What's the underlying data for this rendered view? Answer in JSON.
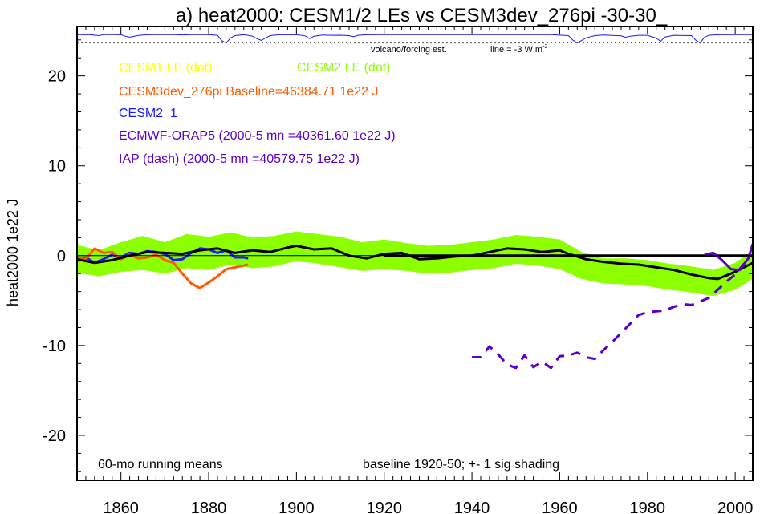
{
  "chart_data": {
    "type": "line",
    "title": "a) heat2000: CESM1/2 LEs vs CESM3dev_276pi -30-30_",
    "ylabel": "heat2000 1e22 J",
    "xlabel": "",
    "xlim": [
      1850,
      2004
    ],
    "ylim": [
      -25,
      25.5
    ],
    "x_ticks": [
      1860,
      1880,
      1900,
      1920,
      1940,
      1960,
      1980,
      2000
    ],
    "y_ticks": [
      -20,
      -10,
      0,
      10,
      20
    ],
    "annotations": {
      "bottom_left": "60-mo running means",
      "bottom_right": "baseline 1920-50; +- 1 sig shading",
      "volcano_label": "volcano/forcing est.",
      "volcano_line_label": "line = -3 W m",
      "volcano_line_sup": "-2"
    },
    "legend": [
      {
        "label": "CESM1 LE (dot)",
        "color": "#ffff00"
      },
      {
        "label": "CESM2 LE (dot)",
        "color": "#8cff00"
      },
      {
        "label": "CESM3dev_276pi Baseline=46384.71 1e22 J",
        "color": "#ff5a00"
      },
      {
        "label": "CESM2_1",
        "color": "#1a1aff"
      },
      {
        "label": "ECMWF-ORAP5 (2000-5 mn =40361.60 1e22 J)",
        "color": "#5a00c8"
      },
      {
        "label": "IAP (dash) (2000-5 mn =40579.75 1e22 J)",
        "color": "#5a00c8"
      }
    ],
    "band": {
      "name": "CESM2 LE",
      "color": "#8cff00",
      "x": [
        1850,
        1855,
        1860,
        1865,
        1870,
        1875,
        1880,
        1885,
        1890,
        1895,
        1900,
        1905,
        1910,
        1915,
        1920,
        1925,
        1930,
        1935,
        1940,
        1945,
        1950,
        1955,
        1960,
        1965,
        1970,
        1975,
        1980,
        1985,
        1990,
        1995,
        2000,
        2004
      ],
      "upper": [
        1.2,
        0.6,
        1.5,
        2.2,
        1.5,
        2.4,
        2.1,
        2.6,
        2.0,
        2.2,
        2.7,
        2.4,
        2.1,
        1.5,
        1.8,
        1.4,
        1.1,
        1.2,
        1.5,
        1.8,
        2.3,
        2.1,
        1.8,
        0.4,
        -0.3,
        -0.3,
        -0.5,
        -0.9,
        -1.2,
        -1.6,
        -0.8,
        0.6
      ],
      "lower": [
        -1.9,
        -2.3,
        -1.8,
        -1.6,
        -2.0,
        -1.4,
        -1.6,
        -1.0,
        -1.4,
        -1.2,
        -0.6,
        -0.9,
        -1.3,
        -1.7,
        -1.5,
        -1.7,
        -2.0,
        -1.9,
        -1.6,
        -1.4,
        -0.9,
        -1.1,
        -1.5,
        -2.6,
        -3.1,
        -3.2,
        -3.4,
        -3.8,
        -4.1,
        -4.5,
        -3.8,
        -2.6
      ]
    },
    "series": [
      {
        "name": "CESM2_1",
        "color": "#1a1aff",
        "style": "solid",
        "x": [
          1850,
          1852,
          1854,
          1856,
          1858,
          1860,
          1862,
          1864,
          1866,
          1868,
          1870,
          1872,
          1874,
          1876,
          1878,
          1880,
          1882,
          1884,
          1886,
          1888,
          1889
        ],
        "y": [
          -0.6,
          -0.2,
          -0.8,
          -0.4,
          0.1,
          -0.2,
          0.3,
          0.2,
          0.5,
          0.4,
          0.2,
          -0.5,
          -0.4,
          0.3,
          0.8,
          0.7,
          0.3,
          0.6,
          -0.2,
          -0.2,
          -0.3
        ]
      },
      {
        "name": "CESM3dev_276pi",
        "color": "#ff5a00",
        "style": "solid",
        "x": [
          1850,
          1852,
          1854,
          1856,
          1858,
          1860,
          1862,
          1864,
          1866,
          1868,
          1870,
          1872,
          1874,
          1876,
          1878,
          1880,
          1882,
          1884,
          1886,
          1888,
          1889
        ],
        "y": [
          -0.2,
          -0.4,
          0.8,
          0.3,
          0.4,
          -0.4,
          0.1,
          -0.3,
          -0.2,
          0.1,
          -0.5,
          -0.8,
          -2.0,
          -3.1,
          -3.6,
          -3.0,
          -2.3,
          -1.5,
          -1.3,
          -1.1,
          -1.0
        ]
      },
      {
        "name": "CESM2 LE mean",
        "color": "#000000",
        "style": "solid",
        "x": [
          1850,
          1854,
          1858,
          1862,
          1866,
          1870,
          1874,
          1878,
          1882,
          1886,
          1890,
          1894,
          1898,
          1900,
          1904,
          1908,
          1912,
          1916,
          1920,
          1924,
          1928,
          1932,
          1936,
          1940,
          1944,
          1948,
          1952,
          1956,
          1960,
          1962,
          1966,
          1970,
          1974,
          1978,
          1982,
          1986,
          1990,
          1994,
          1996,
          1998,
          2000,
          2002,
          2004
        ],
        "y": [
          -0.4,
          -0.8,
          -0.5,
          0.0,
          0.4,
          0.3,
          0.2,
          0.6,
          0.8,
          0.3,
          0.6,
          0.4,
          0.9,
          1.1,
          0.7,
          0.8,
          0.0,
          -0.3,
          0.2,
          0.3,
          -0.4,
          -0.3,
          -0.1,
          0.0,
          0.4,
          0.8,
          0.7,
          0.4,
          0.6,
          0.2,
          -0.4,
          -0.7,
          -0.9,
          -1.0,
          -1.3,
          -1.6,
          -2.1,
          -2.5,
          -2.6,
          -2.2,
          -1.8,
          -1.3,
          -0.8
        ]
      },
      {
        "name": "Baseline zero",
        "color": "#000000",
        "style": "solid",
        "x": [
          1920,
          2004
        ],
        "y": [
          0.0,
          0.0
        ]
      },
      {
        "name": "ECMWF-ORAP5",
        "color": "#5a00c8",
        "style": "solid",
        "x": [
          1993,
          1995,
          1997,
          1999,
          2001,
          2003,
          2004
        ],
        "y": [
          0.1,
          0.3,
          -0.5,
          -1.5,
          -1.6,
          -0.3,
          1.3
        ]
      },
      {
        "name": "IAP",
        "color": "#5a00c8",
        "style": "dash",
        "x": [
          1940,
          1942,
          1944,
          1946,
          1948,
          1950,
          1952,
          1954,
          1956,
          1958,
          1960,
          1962,
          1964,
          1966,
          1968,
          1970,
          1972,
          1974,
          1976,
          1978,
          1980,
          1982,
          1984,
          1986,
          1988,
          1990,
          1992,
          1994,
          1996,
          1998,
          2000,
          2002
        ],
        "y": [
          -11.3,
          -11.3,
          -10.1,
          -11.0,
          -12.1,
          -12.5,
          -11.1,
          -12.4,
          -11.8,
          -12.5,
          -11.2,
          -11.1,
          -10.8,
          -11.3,
          -11.5,
          -10.5,
          -9.6,
          -8.6,
          -7.6,
          -6.6,
          -6.3,
          -6.2,
          -6.1,
          -5.7,
          -5.4,
          -5.5,
          -5.1,
          -4.7,
          -3.8,
          -2.9,
          -2.1,
          -0.9
        ]
      }
    ],
    "volcano_trace": {
      "color": "#1a1aff",
      "x": [
        1850,
        1853,
        1855,
        1856,
        1858,
        1860,
        1861,
        1862,
        1864,
        1866,
        1868,
        1872,
        1874,
        1876,
        1878,
        1880,
        1882,
        1883,
        1884,
        1885,
        1886,
        1888,
        1889,
        1890,
        1891,
        1892,
        1893,
        1894,
        1896,
        1898,
        1900,
        1902,
        1903,
        1904,
        1906,
        1908,
        1910,
        1912,
        1913,
        1914,
        1916,
        1920,
        1928,
        1932,
        1940,
        1950,
        1958,
        1962,
        1963,
        1964,
        1966,
        1968,
        1970,
        1974,
        1975,
        1976,
        1978,
        1980,
        1982,
        1983,
        1984,
        1986,
        1990,
        1991,
        1992,
        1993,
        1994,
        1996,
        2000,
        2004
      ],
      "y": [
        -0.05,
        -0.1,
        -0.4,
        -0.05,
        -0.05,
        -0.1,
        -0.6,
        -0.95,
        -0.35,
        -0.1,
        -0.05,
        -0.05,
        -0.15,
        -0.05,
        -0.05,
        -0.05,
        -0.3,
        -2.2,
        -3.0,
        -1.2,
        -0.4,
        -0.1,
        -0.3,
        -0.6,
        -1.5,
        -2.1,
        -1.2,
        -0.4,
        -0.1,
        -0.1,
        -0.1,
        -0.5,
        -1.5,
        -0.6,
        -0.2,
        -0.3,
        -0.25,
        -0.4,
        -0.8,
        -0.3,
        -0.1,
        -0.05,
        -0.05,
        -0.05,
        -0.05,
        -0.05,
        -0.05,
        -0.4,
        -2.0,
        -3.0,
        -1.2,
        -0.4,
        -0.2,
        -0.5,
        -1.0,
        -0.6,
        -0.3,
        -0.3,
        -1.3,
        -2.4,
        -0.9,
        -0.3,
        -0.4,
        -2.0,
        -3.0,
        -1.0,
        -0.3,
        -0.1,
        -0.05,
        -0.05
      ]
    }
  }
}
